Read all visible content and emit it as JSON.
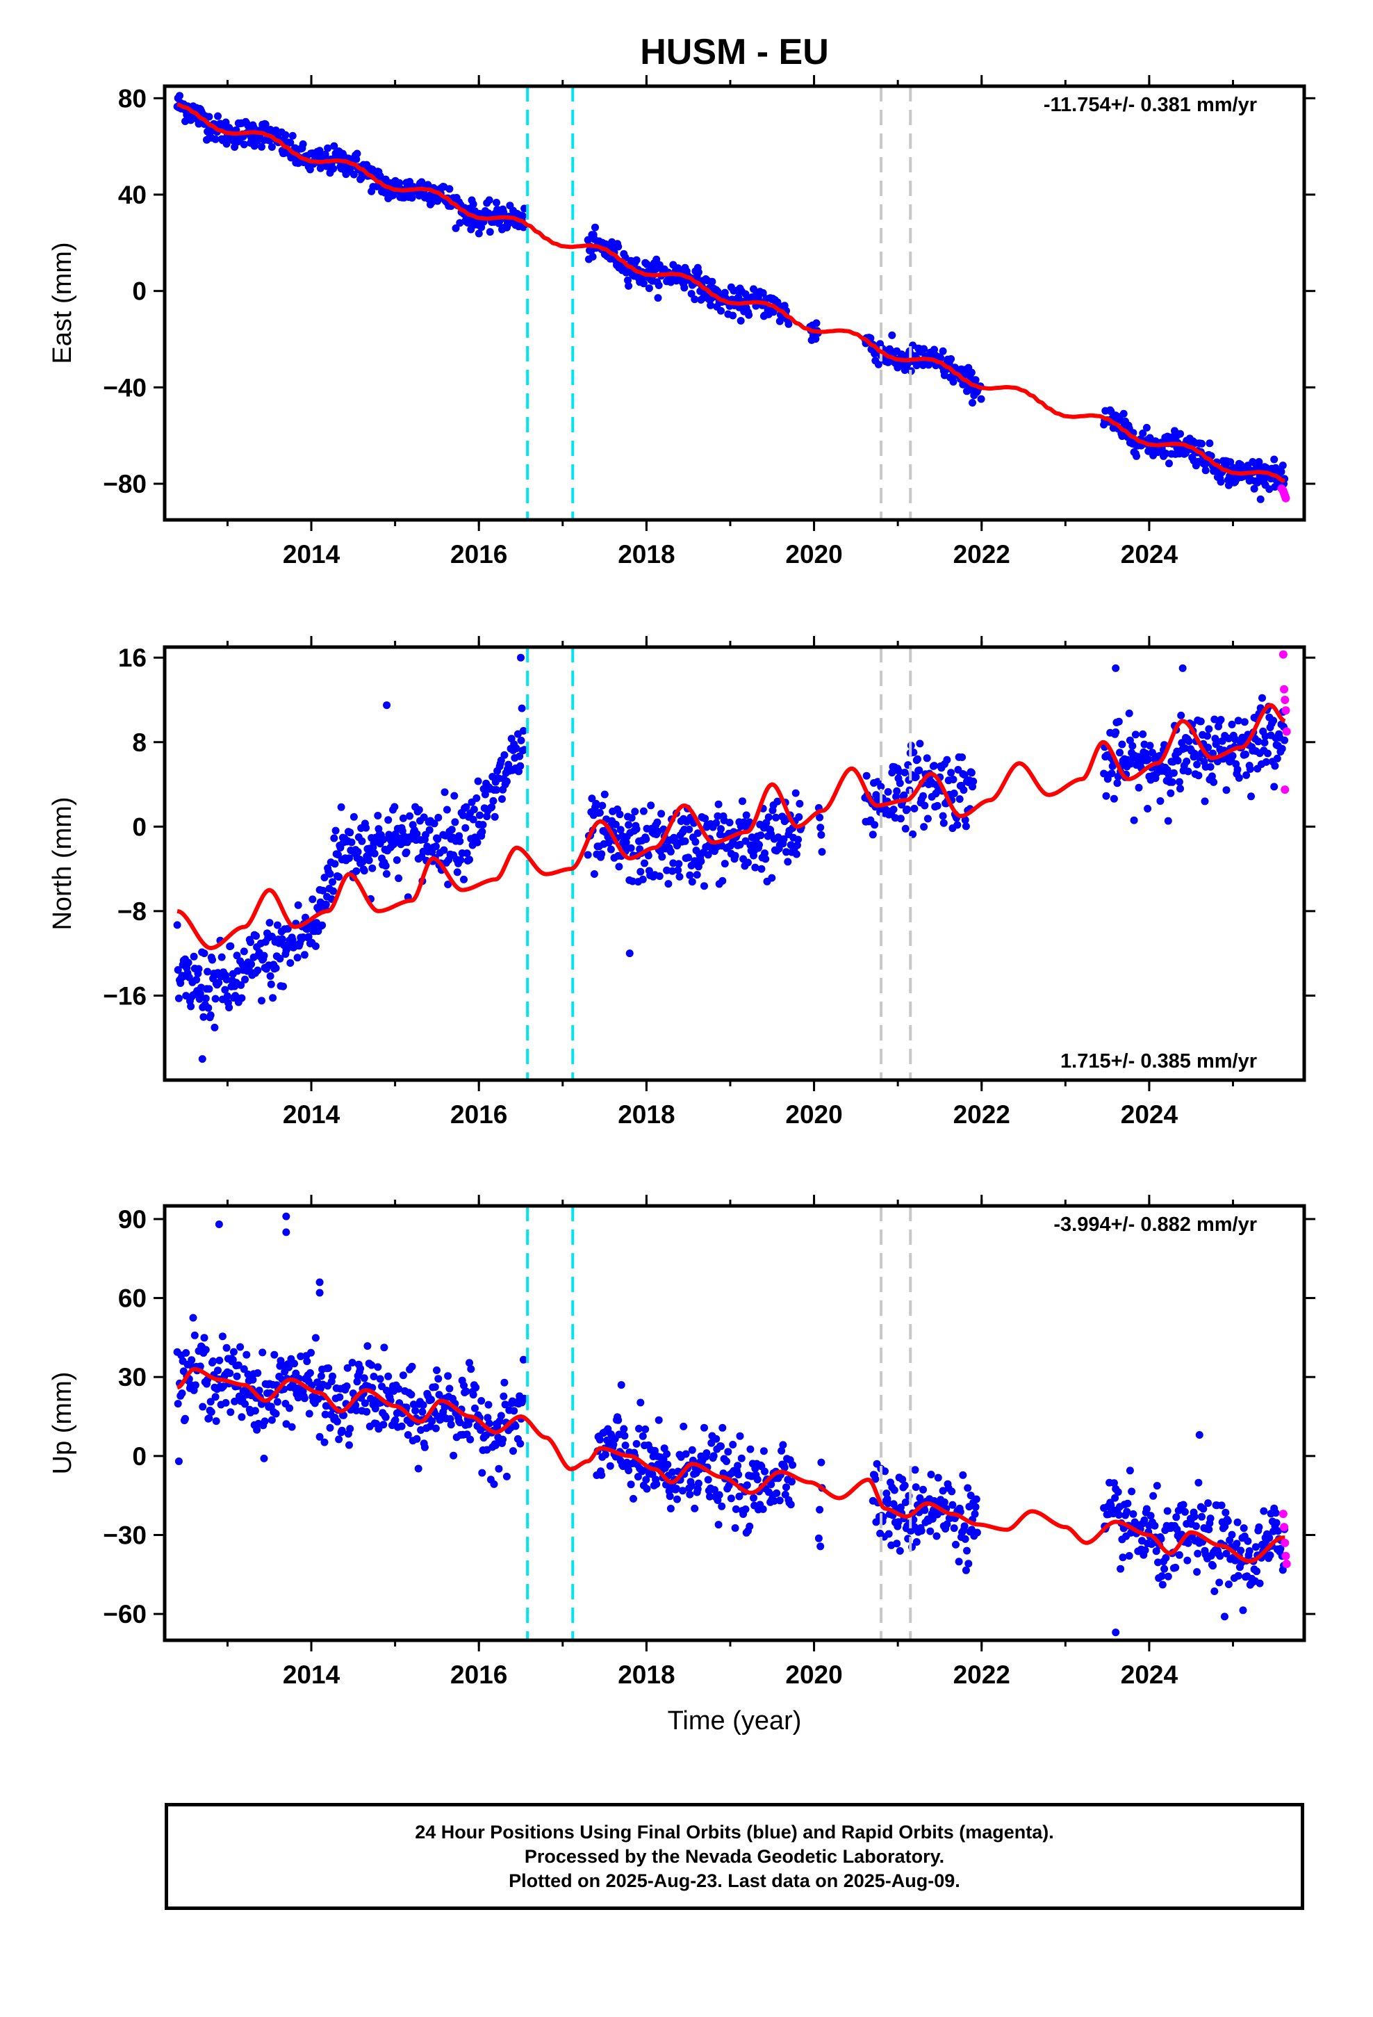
{
  "title": "HUSM - EU",
  "colors": {
    "final_points": "#0000ff",
    "rapid_points": "#ff00ff",
    "model_line": "#ff0000",
    "offset_equipment": "#00e5f0",
    "offset_other": "#c8c8c8"
  },
  "chart_data": [
    {
      "type": "scatter",
      "component": "East",
      "ylabel": "East (mm)",
      "xlabel": "",
      "xlim": [
        2012.25,
        2025.85
      ],
      "ylim": [
        -95,
        85
      ],
      "xticks": [
        2014,
        2016,
        2018,
        2020,
        2022,
        2024
      ],
      "yticks": [
        -80,
        -40,
        0,
        40,
        80
      ],
      "xtick_labels": [
        "2014",
        "2016",
        "2018",
        "2020",
        "2022",
        "2024"
      ],
      "ytick_labels": [
        "−80",
        "−40",
        "0",
        "40",
        "80"
      ],
      "rate_label": "-11.754+/- 0.381 mm/yr",
      "rate_position": "top-right",
      "rate": -11.754,
      "rate_sigma": 0.381,
      "trend_at_2012_4": 75,
      "anomaly_amp": 2.5,
      "scatter_sd": 2.8,
      "gaps": [
        [
          2016.55,
          2017.3
        ],
        [
          2019.7,
          2019.95
        ],
        [
          2020.05,
          2020.6
        ],
        [
          2022.0,
          2023.45
        ]
      ],
      "seasonal": [
        {
          "x": 2013.3,
          "dy": 2
        },
        {
          "x": 2015.1,
          "dy": -2
        },
        {
          "x": 2018.5,
          "dy": -1
        }
      ],
      "rapid_points": {
        "x": [
          2025.58,
          2025.6,
          2025.61,
          2025.62,
          2025.63
        ],
        "y": [
          -82,
          -83,
          -84,
          -85,
          -86
        ]
      }
    },
    {
      "type": "scatter",
      "component": "North",
      "ylabel": "North (mm)",
      "xlabel": "",
      "xlim": [
        2012.25,
        2025.85
      ],
      "ylim": [
        -24,
        17
      ],
      "xticks": [
        2014,
        2016,
        2018,
        2020,
        2022,
        2024
      ],
      "yticks": [
        -16,
        -8,
        0,
        8,
        16
      ],
      "xtick_labels": [
        "2014",
        "2016",
        "2018",
        "2020",
        "2022",
        "2024"
      ],
      "ytick_labels": [
        "−16",
        "−8",
        "0",
        "8",
        "16"
      ],
      "rate_label": "1.715+/- 0.385 mm/yr",
      "rate_position": "bottom-right",
      "rate": 1.715,
      "rate_sigma": 0.385,
      "model_knots": [
        [
          2012.4,
          -8.0
        ],
        [
          2012.8,
          -11.5
        ],
        [
          2013.2,
          -9.5
        ],
        [
          2013.5,
          -6.0
        ],
        [
          2013.8,
          -9.5
        ],
        [
          2014.2,
          -8.0
        ],
        [
          2014.45,
          -4.5
        ],
        [
          2014.8,
          -8.0
        ],
        [
          2015.2,
          -7.0
        ],
        [
          2015.45,
          -3.0
        ],
        [
          2015.8,
          -6.0
        ],
        [
          2016.2,
          -5.0
        ],
        [
          2016.45,
          -2.0
        ],
        [
          2016.8,
          -4.5
        ],
        [
          2017.1,
          -4.0
        ],
        [
          2017.45,
          0.5
        ],
        [
          2017.8,
          -3.0
        ],
        [
          2018.1,
          -2.0
        ],
        [
          2018.45,
          2.0
        ],
        [
          2018.8,
          -1.5
        ],
        [
          2019.2,
          -0.5
        ],
        [
          2019.5,
          4.0
        ],
        [
          2019.8,
          0.0
        ],
        [
          2020.1,
          1.5
        ],
        [
          2020.45,
          5.5
        ],
        [
          2020.75,
          2.0
        ],
        [
          2021.1,
          2.5
        ],
        [
          2021.4,
          5.0
        ],
        [
          2021.75,
          1.0
        ],
        [
          2022.1,
          2.5
        ],
        [
          2022.45,
          6.0
        ],
        [
          2022.8,
          3.0
        ],
        [
          2023.2,
          4.5
        ],
        [
          2023.45,
          8.0
        ],
        [
          2023.75,
          4.5
        ],
        [
          2024.1,
          6.0
        ],
        [
          2024.4,
          10.0
        ],
        [
          2024.75,
          6.5
        ],
        [
          2025.1,
          7.5
        ],
        [
          2025.45,
          11.5
        ],
        [
          2025.62,
          10.0
        ]
      ],
      "cloud_mean": [
        [
          2012.4,
          -15.0
        ],
        [
          2013.0,
          -15.0
        ],
        [
          2013.5,
          -12.5
        ],
        [
          2014.0,
          -10.0
        ],
        [
          2014.35,
          -2.0
        ],
        [
          2015.0,
          -1.5
        ],
        [
          2015.7,
          -1.0
        ],
        [
          2016.0,
          1.0
        ],
        [
          2016.5,
          7.0
        ],
        [
          2017.3,
          -1.0
        ],
        [
          2018.0,
          -2.0
        ],
        [
          2019.0,
          -1.5
        ],
        [
          2019.7,
          -1.0
        ],
        [
          2020.6,
          2.0
        ],
        [
          2021.2,
          4.0
        ],
        [
          2021.9,
          3.5
        ],
        [
          2023.4,
          6.0
        ],
        [
          2024.0,
          6.0
        ],
        [
          2025.0,
          7.5
        ],
        [
          2025.6,
          9.0
        ]
      ],
      "scatter_sd": 1.8,
      "gaps": [
        [
          2016.55,
          2017.3
        ],
        [
          2019.85,
          2020.05
        ],
        [
          2020.1,
          2020.6
        ],
        [
          2021.9,
          2023.45
        ]
      ],
      "outliers": [
        {
          "x": 2014.9,
          "y": 11.5
        },
        {
          "x": 2016.5,
          "y": 16.0
        },
        {
          "x": 2023.6,
          "y": 15.0
        },
        {
          "x": 2024.4,
          "y": 15.0
        },
        {
          "x": 2017.8,
          "y": -12.0
        },
        {
          "x": 2012.7,
          "y": -22.0
        }
      ],
      "rapid_points": {
        "x": [
          2025.6,
          2025.61,
          2025.62,
          2025.63,
          2025.64,
          2025.62
        ],
        "y": [
          16.3,
          13.0,
          12.0,
          11.0,
          9.0,
          3.5
        ]
      }
    },
    {
      "type": "scatter",
      "component": "Up",
      "ylabel": "Up (mm)",
      "xlabel": "Time (year)",
      "xlim": [
        2012.25,
        2025.85
      ],
      "ylim": [
        -70,
        95
      ],
      "xticks": [
        2014,
        2016,
        2018,
        2020,
        2022,
        2024
      ],
      "yticks": [
        -60,
        -30,
        0,
        30,
        60,
        90
      ],
      "xtick_labels": [
        "2014",
        "2016",
        "2018",
        "2020",
        "2022",
        "2024"
      ],
      "ytick_labels": [
        "−60",
        "−30",
        "0",
        "30",
        "60",
        "90"
      ],
      "rate_label": "-3.994+/- 0.882 mm/yr",
      "rate_position": "top-right",
      "rate": -3.994,
      "rate_sigma": 0.882,
      "model_knots": [
        [
          2012.4,
          26.0
        ],
        [
          2012.6,
          33.0
        ],
        [
          2012.9,
          29.0
        ],
        [
          2013.2,
          27.0
        ],
        [
          2013.45,
          21.0
        ],
        [
          2013.75,
          29.0
        ],
        [
          2014.1,
          24.0
        ],
        [
          2014.35,
          17.0
        ],
        [
          2014.65,
          25.0
        ],
        [
          2015.0,
          19.0
        ],
        [
          2015.3,
          13.0
        ],
        [
          2015.55,
          21.0
        ],
        [
          2015.9,
          15.0
        ],
        [
          2016.2,
          9.0
        ],
        [
          2016.5,
          15.0
        ],
        [
          2016.8,
          7.0
        ],
        [
          2017.1,
          -5.0
        ],
        [
          2017.3,
          -2.0
        ],
        [
          2017.45,
          3.0
        ],
        [
          2017.8,
          0.0
        ],
        [
          2018.1,
          -5.0
        ],
        [
          2018.3,
          -10.0
        ],
        [
          2018.55,
          -3.0
        ],
        [
          2018.9,
          -8.0
        ],
        [
          2019.25,
          -14.0
        ],
        [
          2019.6,
          -6.0
        ],
        [
          2019.95,
          -10.0
        ],
        [
          2020.3,
          -16.0
        ],
        [
          2020.65,
          -9.0
        ],
        [
          2020.85,
          -20.0
        ],
        [
          2021.1,
          -23.0
        ],
        [
          2021.35,
          -18.0
        ],
        [
          2021.65,
          -22.0
        ],
        [
          2021.95,
          -26.0
        ],
        [
          2022.3,
          -28.0
        ],
        [
          2022.6,
          -21.0
        ],
        [
          2023.0,
          -27.0
        ],
        [
          2023.25,
          -33.0
        ],
        [
          2023.6,
          -25.0
        ],
        [
          2024.0,
          -30.0
        ],
        [
          2024.25,
          -37.0
        ],
        [
          2024.5,
          -29.0
        ],
        [
          2024.85,
          -34.0
        ],
        [
          2025.2,
          -40.0
        ],
        [
          2025.6,
          -31.0
        ]
      ],
      "scatter_sd": 7.5,
      "gaps": [
        [
          2016.55,
          2017.4
        ],
        [
          2019.75,
          2020.05
        ],
        [
          2020.1,
          2020.7
        ],
        [
          2021.95,
          2023.45
        ]
      ],
      "outliers": [
        {
          "x": 2012.9,
          "y": 88
        },
        {
          "x": 2013.7,
          "y": 91
        },
        {
          "x": 2013.7,
          "y": 85
        },
        {
          "x": 2014.1,
          "y": 66
        },
        {
          "x": 2014.1,
          "y": 62
        },
        {
          "x": 2017.7,
          "y": 27
        },
        {
          "x": 2023.6,
          "y": -67
        },
        {
          "x": 2024.6,
          "y": 8
        },
        {
          "x": 2024.9,
          "y": -61
        }
      ],
      "rapid_points": {
        "x": [
          2025.6,
          2025.61,
          2025.62,
          2025.63,
          2025.64
        ],
        "y": [
          -22,
          -27,
          -33,
          -38,
          -41
        ]
      }
    }
  ],
  "offsets": {
    "equipment": [
      2016.58,
      2017.12
    ],
    "other": [
      2020.8,
      2021.15
    ]
  },
  "footer": {
    "line1": "24 Hour Positions Using Final Orbits (blue) and Rapid Orbits (magenta).",
    "line2": "Processed by the Nevada Geodetic Laboratory.",
    "line3": "Plotted on 2025-Aug-23. Last data on 2025-Aug-09."
  }
}
